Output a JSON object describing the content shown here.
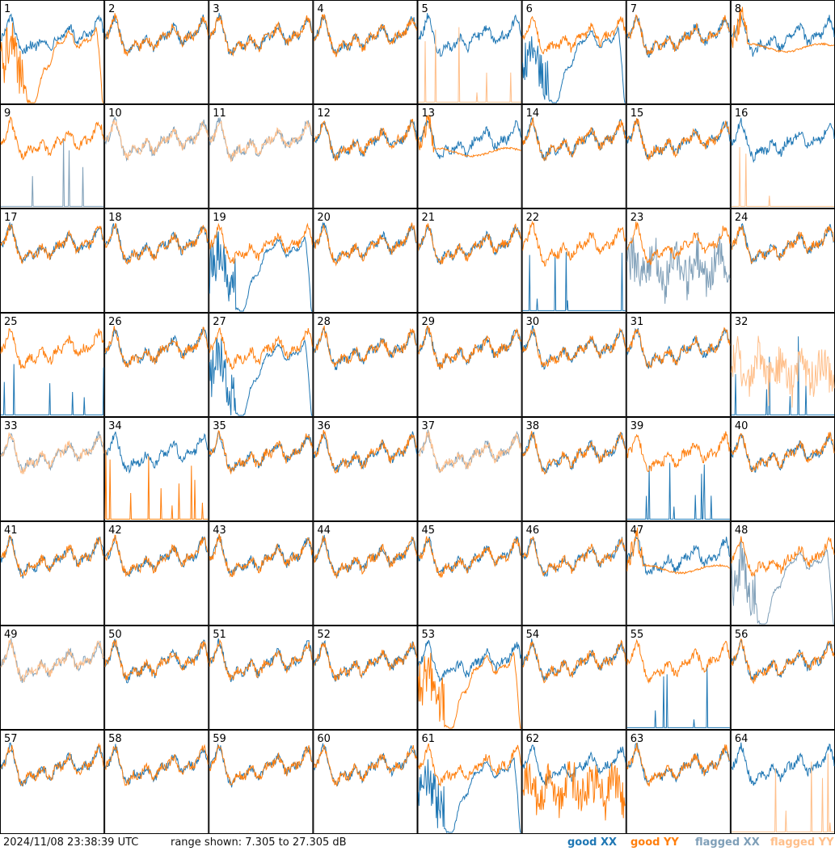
{
  "footer": {
    "timestamp": "2024/11/08 23:38:39 UTC",
    "range": "range shown: 7.305 to 27.305 dB",
    "legend": {
      "good_xx": "good XX",
      "good_yy": "good YY",
      "flagged_xx": "flagged XX",
      "flagged_yy": "flagged YY"
    }
  },
  "colors": {
    "good_xx": "#1f77b4",
    "good_yy": "#ff7f0e",
    "flagged_xx": "#7f9fb8",
    "flagged_yy": "#ffbf8a"
  },
  "chart_data": {
    "type": "line",
    "layout": "8x8 small multiples",
    "ylim": [
      7.305,
      27.305
    ],
    "y_unit": "dB",
    "panels": [
      {
        "label": "1",
        "xx": "good",
        "yy": "good",
        "xx_shape": "normal",
        "yy_shape": "dip"
      },
      {
        "label": "2",
        "xx": "good",
        "yy": "good",
        "xx_shape": "normal",
        "yy_shape": "normal"
      },
      {
        "label": "3",
        "xx": "good",
        "yy": "good",
        "xx_shape": "normal",
        "yy_shape": "normal"
      },
      {
        "label": "4",
        "xx": "good",
        "yy": "good",
        "xx_shape": "normal",
        "yy_shape": "normal"
      },
      {
        "label": "5",
        "xx": "good",
        "yy": "flagged",
        "xx_shape": "normal",
        "yy_shape": "spikes"
      },
      {
        "label": "6",
        "xx": "good",
        "yy": "good",
        "xx_shape": "dip",
        "yy_shape": "normal"
      },
      {
        "label": "7",
        "xx": "good",
        "yy": "good",
        "xx_shape": "normal",
        "yy_shape": "normal"
      },
      {
        "label": "8",
        "xx": "good",
        "yy": "good",
        "xx_shape": "normal",
        "yy_shape": "flat"
      },
      {
        "label": "9",
        "xx": "flagged",
        "yy": "good",
        "xx_shape": "spikes",
        "yy_shape": "normal"
      },
      {
        "label": "10",
        "xx": "flagged",
        "yy": "flagged",
        "xx_shape": "normal",
        "yy_shape": "normal"
      },
      {
        "label": "11",
        "xx": "flagged",
        "yy": "flagged",
        "xx_shape": "normal",
        "yy_shape": "normal"
      },
      {
        "label": "12",
        "xx": "good",
        "yy": "good",
        "xx_shape": "normal",
        "yy_shape": "normal"
      },
      {
        "label": "13",
        "xx": "good",
        "yy": "good",
        "xx_shape": "normal",
        "yy_shape": "flat"
      },
      {
        "label": "14",
        "xx": "good",
        "yy": "good",
        "xx_shape": "normal",
        "yy_shape": "normal"
      },
      {
        "label": "15",
        "xx": "good",
        "yy": "good",
        "xx_shape": "normal",
        "yy_shape": "normal"
      },
      {
        "label": "16",
        "xx": "good",
        "yy": "flagged",
        "xx_shape": "normal",
        "yy_shape": "spikes"
      },
      {
        "label": "17",
        "xx": "good",
        "yy": "good",
        "xx_shape": "normal",
        "yy_shape": "normal"
      },
      {
        "label": "18",
        "xx": "good",
        "yy": "good",
        "xx_shape": "normal",
        "yy_shape": "normal"
      },
      {
        "label": "19",
        "xx": "good",
        "yy": "good",
        "xx_shape": "dip",
        "yy_shape": "normal"
      },
      {
        "label": "20",
        "xx": "good",
        "yy": "good",
        "xx_shape": "normal",
        "yy_shape": "normal"
      },
      {
        "label": "21",
        "xx": "good",
        "yy": "good",
        "xx_shape": "normal",
        "yy_shape": "normal"
      },
      {
        "label": "22",
        "xx": "good",
        "yy": "good",
        "xx_shape": "spikes",
        "yy_shape": "normal"
      },
      {
        "label": "23",
        "xx": "flagged",
        "yy": "good",
        "xx_shape": "noisy",
        "yy_shape": "normal"
      },
      {
        "label": "24",
        "xx": "good",
        "yy": "good",
        "xx_shape": "normal",
        "yy_shape": "normal"
      },
      {
        "label": "25",
        "xx": "good",
        "yy": "good",
        "xx_shape": "spikes",
        "yy_shape": "normal"
      },
      {
        "label": "26",
        "xx": "good",
        "yy": "good",
        "xx_shape": "normal",
        "yy_shape": "normal"
      },
      {
        "label": "27",
        "xx": "good",
        "yy": "good",
        "xx_shape": "dip",
        "yy_shape": "normal"
      },
      {
        "label": "28",
        "xx": "good",
        "yy": "good",
        "xx_shape": "normal",
        "yy_shape": "normal"
      },
      {
        "label": "29",
        "xx": "good",
        "yy": "good",
        "xx_shape": "normal",
        "yy_shape": "normal"
      },
      {
        "label": "30",
        "xx": "good",
        "yy": "good",
        "xx_shape": "normal",
        "yy_shape": "normal"
      },
      {
        "label": "31",
        "xx": "good",
        "yy": "good",
        "xx_shape": "normal",
        "yy_shape": "normal"
      },
      {
        "label": "32",
        "xx": "good",
        "yy": "flagged",
        "xx_shape": "spikes",
        "yy_shape": "noisy"
      },
      {
        "label": "33",
        "xx": "flagged",
        "yy": "flagged",
        "xx_shape": "normal",
        "yy_shape": "normal"
      },
      {
        "label": "34",
        "xx": "good",
        "yy": "good",
        "xx_shape": "normal",
        "yy_shape": "spikes"
      },
      {
        "label": "35",
        "xx": "good",
        "yy": "good",
        "xx_shape": "normal",
        "yy_shape": "normal"
      },
      {
        "label": "36",
        "xx": "good",
        "yy": "good",
        "xx_shape": "normal",
        "yy_shape": "normal"
      },
      {
        "label": "37",
        "xx": "flagged",
        "yy": "flagged",
        "xx_shape": "normal",
        "yy_shape": "normal"
      },
      {
        "label": "38",
        "xx": "good",
        "yy": "good",
        "xx_shape": "normal",
        "yy_shape": "normal"
      },
      {
        "label": "39",
        "xx": "good",
        "yy": "good",
        "xx_shape": "spikes",
        "yy_shape": "normal"
      },
      {
        "label": "40",
        "xx": "good",
        "yy": "good",
        "xx_shape": "normal",
        "yy_shape": "normal"
      },
      {
        "label": "41",
        "xx": "good",
        "yy": "good",
        "xx_shape": "normal",
        "yy_shape": "normal"
      },
      {
        "label": "42",
        "xx": "good",
        "yy": "good",
        "xx_shape": "normal",
        "yy_shape": "normal"
      },
      {
        "label": "43",
        "xx": "good",
        "yy": "good",
        "xx_shape": "normal",
        "yy_shape": "normal"
      },
      {
        "label": "44",
        "xx": "good",
        "yy": "good",
        "xx_shape": "normal",
        "yy_shape": "normal"
      },
      {
        "label": "45",
        "xx": "good",
        "yy": "good",
        "xx_shape": "normal",
        "yy_shape": "normal"
      },
      {
        "label": "46",
        "xx": "good",
        "yy": "good",
        "xx_shape": "normal",
        "yy_shape": "normal"
      },
      {
        "label": "47",
        "xx": "good",
        "yy": "good",
        "xx_shape": "normal",
        "yy_shape": "flat"
      },
      {
        "label": "48",
        "xx": "flagged",
        "yy": "good",
        "xx_shape": "dip",
        "yy_shape": "normal"
      },
      {
        "label": "49",
        "xx": "flagged",
        "yy": "flagged",
        "xx_shape": "normal",
        "yy_shape": "normal"
      },
      {
        "label": "50",
        "xx": "good",
        "yy": "good",
        "xx_shape": "normal",
        "yy_shape": "normal"
      },
      {
        "label": "51",
        "xx": "good",
        "yy": "good",
        "xx_shape": "normal",
        "yy_shape": "normal"
      },
      {
        "label": "52",
        "xx": "good",
        "yy": "good",
        "xx_shape": "normal",
        "yy_shape": "normal"
      },
      {
        "label": "53",
        "xx": "good",
        "yy": "good",
        "xx_shape": "normal",
        "yy_shape": "dip"
      },
      {
        "label": "54",
        "xx": "good",
        "yy": "good",
        "xx_shape": "normal",
        "yy_shape": "normal"
      },
      {
        "label": "55",
        "xx": "good",
        "yy": "good",
        "xx_shape": "spikes",
        "yy_shape": "normal"
      },
      {
        "label": "56",
        "xx": "good",
        "yy": "good",
        "xx_shape": "normal",
        "yy_shape": "normal"
      },
      {
        "label": "57",
        "xx": "good",
        "yy": "good",
        "xx_shape": "normal",
        "yy_shape": "normal"
      },
      {
        "label": "58",
        "xx": "good",
        "yy": "good",
        "xx_shape": "normal",
        "yy_shape": "normal"
      },
      {
        "label": "59",
        "xx": "good",
        "yy": "good",
        "xx_shape": "normal",
        "yy_shape": "normal"
      },
      {
        "label": "60",
        "xx": "good",
        "yy": "good",
        "xx_shape": "normal",
        "yy_shape": "normal"
      },
      {
        "label": "61",
        "xx": "good",
        "yy": "good",
        "xx_shape": "dip",
        "yy_shape": "normal"
      },
      {
        "label": "62",
        "xx": "good",
        "yy": "good",
        "xx_shape": "normal",
        "yy_shape": "noisy"
      },
      {
        "label": "63",
        "xx": "good",
        "yy": "good",
        "xx_shape": "normal",
        "yy_shape": "normal"
      },
      {
        "label": "64",
        "xx": "good",
        "yy": "flagged",
        "xx_shape": "normal",
        "yy_shape": "spikes"
      }
    ]
  }
}
